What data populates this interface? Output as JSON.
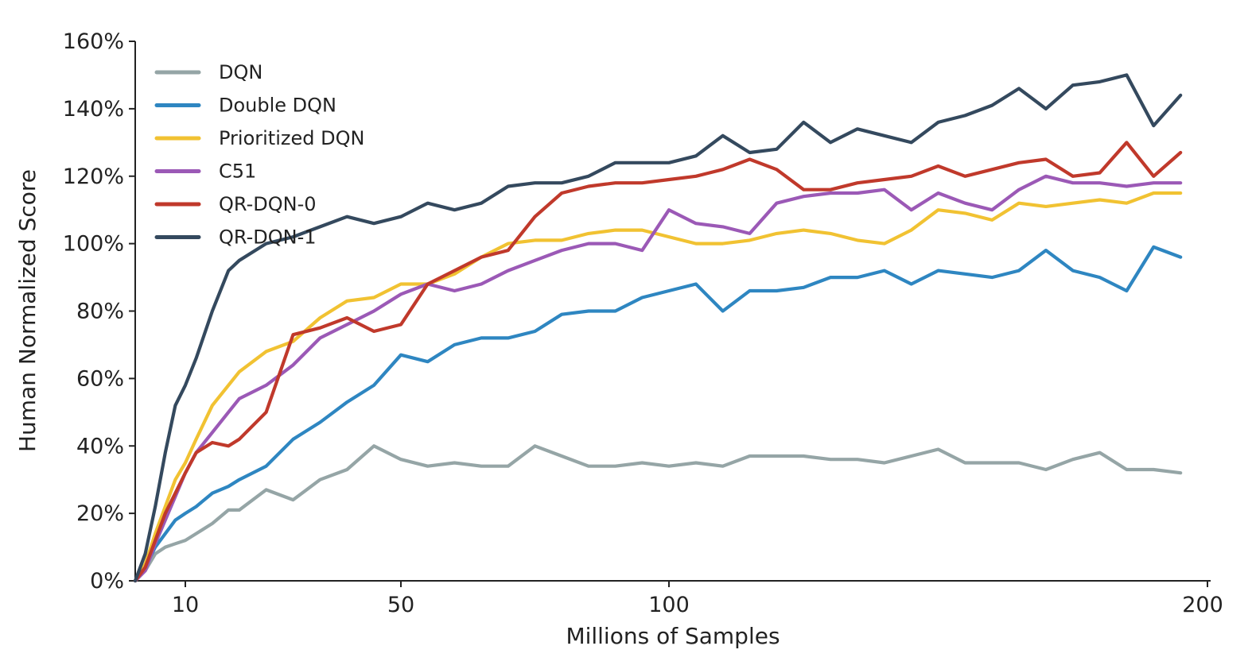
{
  "chart_data": {
    "type": "line",
    "title": "",
    "xlabel": "Millions of Samples",
    "ylabel": "Human Normalized Score",
    "x_ticks": [
      10,
      50,
      100,
      200
    ],
    "y_ticks": [
      0,
      20,
      40,
      60,
      80,
      100,
      120,
      140,
      160
    ],
    "y_tick_labels": [
      "0%",
      "20%",
      "40%",
      "60%",
      "80%",
      "100%",
      "120%",
      "140%",
      "160%"
    ],
    "xlim": [
      0,
      200
    ],
    "ylim": [
      0,
      160
    ],
    "grid": false,
    "legend_position": "top-left",
    "x": [
      0,
      2,
      4,
      6,
      8,
      10,
      12,
      15,
      18,
      20,
      25,
      30,
      35,
      40,
      45,
      50,
      55,
      60,
      65,
      70,
      75,
      80,
      85,
      90,
      95,
      100,
      105,
      110,
      115,
      120,
      125,
      130,
      135,
      140,
      145,
      150,
      155,
      160,
      165,
      170,
      175,
      180,
      185,
      190,
      195
    ],
    "series": [
      {
        "name": "DQN",
        "color": "#95a5a6",
        "values": [
          0,
          3,
          8,
          10,
          11,
          12,
          14,
          17,
          21,
          21,
          27,
          24,
          30,
          33,
          40,
          36,
          34,
          35,
          34,
          34,
          40,
          37,
          34,
          34,
          35,
          34,
          35,
          34,
          37,
          37,
          37,
          36,
          36,
          35,
          37,
          39,
          35,
          35,
          35,
          33,
          36,
          38,
          33,
          33,
          32
        ]
      },
      {
        "name": "Double DQN",
        "color": "#2e86c1",
        "values": [
          0,
          4,
          10,
          14,
          18,
          20,
          22,
          26,
          28,
          30,
          34,
          42,
          47,
          53,
          58,
          67,
          65,
          70,
          72,
          72,
          74,
          79,
          80,
          80,
          84,
          86,
          88,
          80,
          86,
          86,
          87,
          90,
          90,
          92,
          88,
          92,
          91,
          90,
          92,
          98,
          92,
          90,
          86,
          99,
          96
        ]
      },
      {
        "name": "Prioritized DQN",
        "color": "#f1c232",
        "values": [
          0,
          5,
          14,
          22,
          30,
          35,
          42,
          52,
          58,
          62,
          68,
          71,
          78,
          83,
          84,
          88,
          88,
          91,
          96,
          100,
          101,
          101,
          103,
          104,
          104,
          102,
          100,
          100,
          101,
          103,
          104,
          103,
          101,
          100,
          104,
          110,
          109,
          107,
          112,
          111,
          112,
          113,
          112,
          115,
          115
        ]
      },
      {
        "name": "C51",
        "color": "#9b59b6",
        "values": [
          0,
          3,
          11,
          18,
          25,
          32,
          38,
          44,
          50,
          54,
          58,
          64,
          72,
          76,
          80,
          85,
          88,
          86,
          88,
          92,
          95,
          98,
          100,
          100,
          98,
          110,
          106,
          105,
          103,
          112,
          114,
          115,
          115,
          116,
          110,
          115,
          112,
          110,
          116,
          120,
          118,
          118,
          117,
          118,
          118
        ]
      },
      {
        "name": "QR-DQN-0",
        "color": "#c0392b",
        "values": [
          0,
          4,
          12,
          20,
          26,
          32,
          38,
          41,
          40,
          42,
          50,
          73,
          75,
          78,
          74,
          76,
          88,
          92,
          96,
          98,
          108,
          115,
          117,
          118,
          118,
          119,
          120,
          122,
          125,
          122,
          116,
          116,
          118,
          119,
          120,
          123,
          120,
          122,
          124,
          125,
          120,
          121,
          130,
          120,
          127
        ]
      },
      {
        "name": "QR-DQN-1",
        "color": "#34495e",
        "values": [
          0,
          8,
          22,
          38,
          52,
          58,
          66,
          80,
          92,
          95,
          100,
          102,
          105,
          108,
          106,
          108,
          112,
          110,
          112,
          117,
          118,
          118,
          120,
          124,
          124,
          124,
          126,
          132,
          127,
          128,
          136,
          130,
          134,
          132,
          130,
          136,
          138,
          141,
          146,
          140,
          147,
          148,
          150,
          135,
          144
        ]
      }
    ]
  }
}
